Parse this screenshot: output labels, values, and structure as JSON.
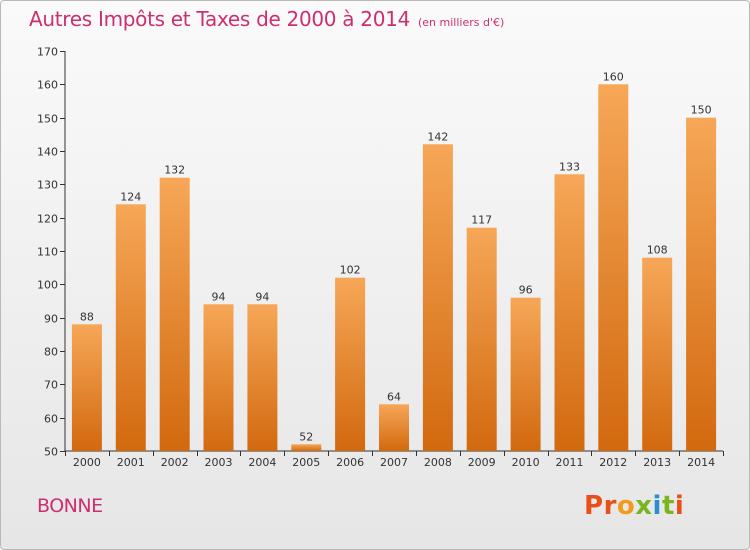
{
  "page": {
    "title": "Autres Impôts et Taxes de 2000 à 2014",
    "title_unit": "(en milliers d'€)",
    "commune": "BONNE",
    "logo_text": "Proxiti",
    "logo_colors": [
      "#e8501a",
      "#e8501a",
      "#f39a1b",
      "#7ab51d",
      "#2a8fd0",
      "#7ab51d",
      "#e8501a"
    ]
  },
  "colors": {
    "title": "#cc2f6f",
    "bar_top": "#f6a757",
    "bar_bottom": "#d2690f",
    "axis": "#333333",
    "tick_text": "#333333",
    "value_text": "#333333",
    "grid": "none"
  },
  "chart_data": {
    "type": "bar",
    "title": "Autres Impôts et Taxes de 2000 à 2014",
    "subtitle": "(en milliers d'€)",
    "xlabel": "",
    "ylabel": "",
    "categories": [
      "2000",
      "2001",
      "2002",
      "2003",
      "2004",
      "2005",
      "2006",
      "2007",
      "2008",
      "2009",
      "2010",
      "2011",
      "2012",
      "2013",
      "2014"
    ],
    "values": [
      88,
      124,
      132,
      94,
      94,
      52,
      102,
      64,
      142,
      117,
      96,
      133,
      160,
      108,
      150
    ],
    "ylim": [
      50,
      170
    ],
    "yticks": [
      50,
      60,
      70,
      80,
      90,
      100,
      110,
      120,
      130,
      140,
      150,
      160,
      170
    ],
    "grid": false,
    "legend": "none",
    "data_labels": true
  }
}
